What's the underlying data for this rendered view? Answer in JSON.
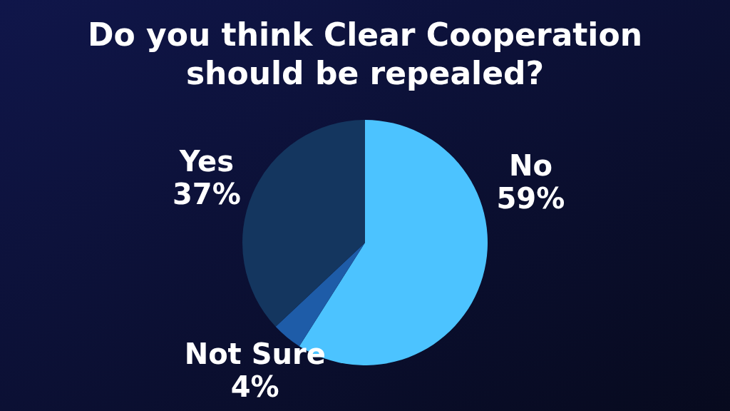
{
  "chart_data": {
    "type": "pie",
    "title": "Do you think Clear Cooperation should be repealed?",
    "categories": [
      "No",
      "Not Sure",
      "Yes"
    ],
    "values": [
      59,
      4,
      37
    ],
    "colors": [
      "#4cc3ff",
      "#1e5ca8",
      "#14365f"
    ],
    "value_labels": [
      "59%",
      "4%",
      "37%"
    ]
  }
}
